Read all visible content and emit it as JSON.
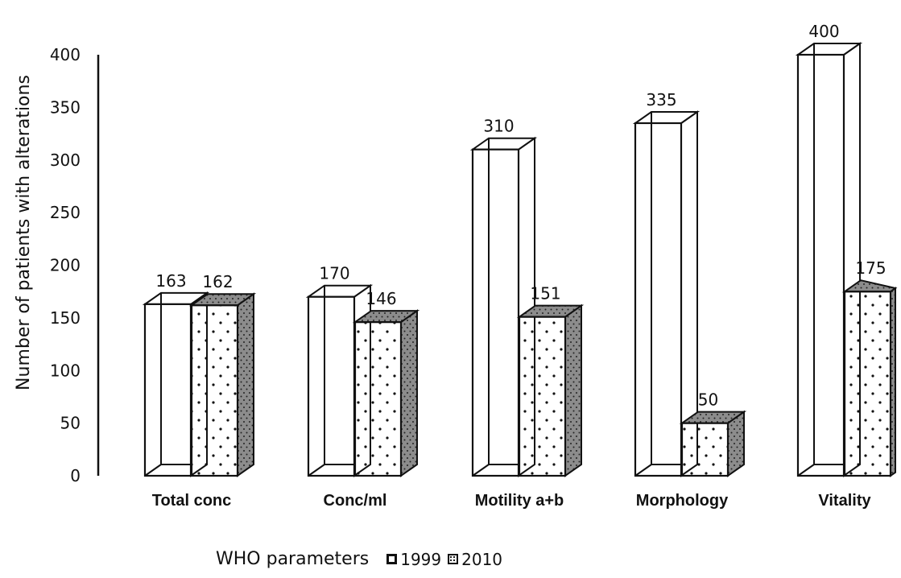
{
  "chart_data": {
    "type": "bar",
    "ylabel": "Number of patients with alterations",
    "xlabel": "WHO parameters",
    "ylim": [
      0,
      400
    ],
    "yticks": [
      0,
      50,
      100,
      150,
      200,
      250,
      300,
      350,
      400
    ],
    "categories": [
      "Total conc",
      "Conc/ml",
      "Motility a+b",
      "Morphology",
      "Vitality"
    ],
    "series": [
      {
        "name": "1999",
        "values": [
          163,
          170,
          310,
          335,
          400
        ],
        "labels": [
          "163",
          "170",
          "310",
          "335",
          "400"
        ]
      },
      {
        "name": "2010",
        "values": [
          162,
          146,
          151,
          50,
          175
        ],
        "labels": [
          "162",
          "146",
          "151",
          "50",
          "175"
        ]
      }
    ],
    "legend": "bottom",
    "grid": false,
    "colors": {
      "1999": "#ffffff",
      "2010": "#ffffff",
      "dots": "#111111",
      "side": "#8c8c8c",
      "outline": "#111111"
    }
  }
}
